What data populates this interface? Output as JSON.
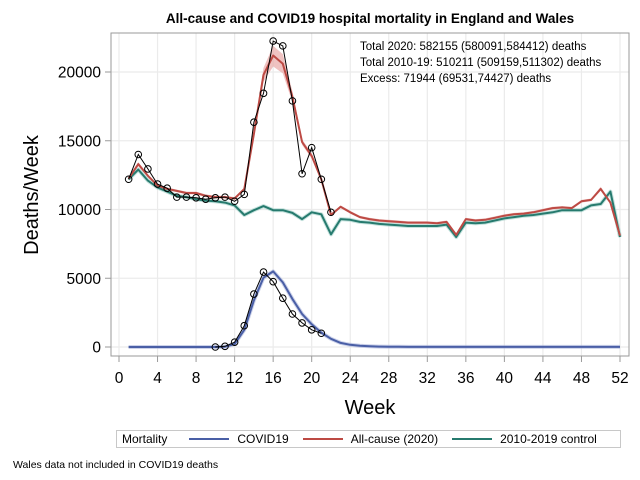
{
  "chart_data": {
    "type": "line",
    "title": "All-cause and COVID19 hospital mortality in England and Wales",
    "xlabel": "Week",
    "ylabel": "Deaths/Week",
    "xlim": [
      0,
      52
    ],
    "ylim": [
      0,
      22500
    ],
    "xticks": [
      0,
      4,
      8,
      12,
      16,
      20,
      24,
      28,
      32,
      36,
      40,
      44,
      48,
      52
    ],
    "yticks": [
      0,
      5000,
      10000,
      15000,
      20000
    ],
    "grid": true,
    "annotations": [
      "Total 2020: 582155 (580091,584412) deaths",
      "Total 2010-19: 510211 (509159,511302) deaths",
      "Excess: 71944 (69531,74427) deaths"
    ],
    "legend": {
      "title": "Mortality",
      "placement": "bottom",
      "entries": [
        {
          "name": "COVID19",
          "color": "#4a5fa6"
        },
        {
          "name": "All-cause (2020)",
          "color": "#bd4a44"
        },
        {
          "name": "2010-2019 control",
          "color": "#267a6e"
        }
      ]
    },
    "footnote": "Wales data not included in COVID19 deaths",
    "x": [
      1,
      2,
      3,
      4,
      5,
      6,
      7,
      8,
      9,
      10,
      11,
      12,
      13,
      14,
      15,
      16,
      17,
      18,
      19,
      20,
      21,
      22,
      23,
      24,
      25,
      26,
      27,
      28,
      29,
      30,
      31,
      32,
      33,
      34,
      35,
      36,
      37,
      38,
      39,
      40,
      41,
      42,
      43,
      44,
      45,
      46,
      47,
      48,
      49,
      50,
      51,
      52
    ],
    "series": [
      {
        "name": "All-cause (2020)",
        "color": "#bd4a44",
        "values": [
          12250,
          13300,
          12450,
          11750,
          11500,
          11350,
          11200,
          11200,
          11000,
          10900,
          10900,
          10800,
          11500,
          15500,
          19800,
          21200,
          20600,
          18200,
          14900,
          13900,
          12200,
          9600,
          10200,
          9800,
          9450,
          9300,
          9200,
          9150,
          9100,
          9050,
          9050,
          9050,
          9000,
          9100,
          8150,
          9300,
          9200,
          9250,
          9400,
          9550,
          9650,
          9700,
          9800,
          9950,
          10100,
          10150,
          10100,
          10600,
          10700,
          11500,
          10500,
          8100
        ],
        "band_low": [
          12150,
          13150,
          12350,
          11650,
          11400,
          11250,
          11100,
          11100,
          10900,
          10800,
          10800,
          10700,
          11400,
          15200,
          19300,
          20400,
          19900,
          17800,
          14700,
          13700,
          12050,
          9500,
          10100,
          9700,
          9350,
          9200,
          9100,
          9050,
          9000,
          8950,
          8950,
          8950,
          8900,
          9000,
          8050,
          9200,
          9100,
          9150,
          9300,
          9450,
          9550,
          9600,
          9700,
          9850,
          10000,
          10050,
          10000,
          10500,
          10600,
          11350,
          10400,
          8000
        ],
        "band_high": [
          12350,
          13450,
          12550,
          11850,
          11600,
          11450,
          11300,
          11300,
          11100,
          11000,
          11000,
          10900,
          11600,
          15800,
          20300,
          21900,
          21300,
          18600,
          15100,
          14100,
          12350,
          9700,
          10300,
          9900,
          9550,
          9400,
          9300,
          9250,
          9200,
          9150,
          9150,
          9150,
          9100,
          9200,
          8250,
          9400,
          9300,
          9350,
          9500,
          9650,
          9750,
          9800,
          9900,
          10050,
          10200,
          10250,
          10200,
          10700,
          10800,
          11650,
          10600,
          8200
        ]
      },
      {
        "name": "2010-2019 control",
        "color": "#267a6e",
        "values": [
          12200,
          12900,
          12100,
          11600,
          11300,
          11000,
          10900,
          10750,
          10650,
          10600,
          10500,
          10300,
          9600,
          9950,
          10250,
          9950,
          9950,
          9750,
          9300,
          9800,
          9650,
          8200,
          9300,
          9250,
          9100,
          9050,
          8950,
          8900,
          8850,
          8800,
          8800,
          8800,
          8800,
          8900,
          8000,
          9050,
          9000,
          9050,
          9200,
          9350,
          9450,
          9550,
          9600,
          9700,
          9800,
          9950,
          9950,
          9950,
          10300,
          10400,
          11300,
          8000
        ]
      },
      {
        "name": "COVID19",
        "color": "#4a5fa6",
        "values": [
          0,
          0,
          0,
          0,
          0,
          0,
          0,
          0,
          0,
          0,
          20,
          220,
          1250,
          3400,
          5050,
          5500,
          4700,
          3500,
          2400,
          1650,
          1050,
          600,
          300,
          160,
          90,
          50,
          30,
          20,
          15,
          10,
          10,
          10,
          10,
          10,
          10,
          10,
          10,
          10,
          10,
          10,
          10,
          10,
          10,
          10,
          10,
          10,
          10,
          10,
          10,
          10,
          10,
          10
        ]
      },
      {
        "name": "All-cause observed (points)",
        "color": "#000000",
        "x": [
          1,
          2,
          3,
          4,
          5,
          6,
          7,
          8,
          9,
          10,
          11,
          12,
          13,
          14,
          15,
          16,
          17,
          18,
          19,
          20,
          21,
          22
        ],
        "values": [
          12200,
          14000,
          12950,
          11850,
          11550,
          10900,
          10900,
          10850,
          10750,
          10850,
          10900,
          10600,
          11100,
          16350,
          18450,
          22250,
          21900,
          17900,
          12600,
          14500,
          12200,
          9800
        ]
      },
      {
        "name": "COVID19 observed (points)",
        "color": "#000000",
        "x": [
          10,
          11,
          12,
          13,
          14,
          15,
          16,
          17,
          18,
          19,
          20,
          21
        ],
        "values": [
          0,
          50,
          350,
          1550,
          3850,
          5450,
          4750,
          3550,
          2400,
          1750,
          1250,
          1000
        ]
      }
    ]
  }
}
